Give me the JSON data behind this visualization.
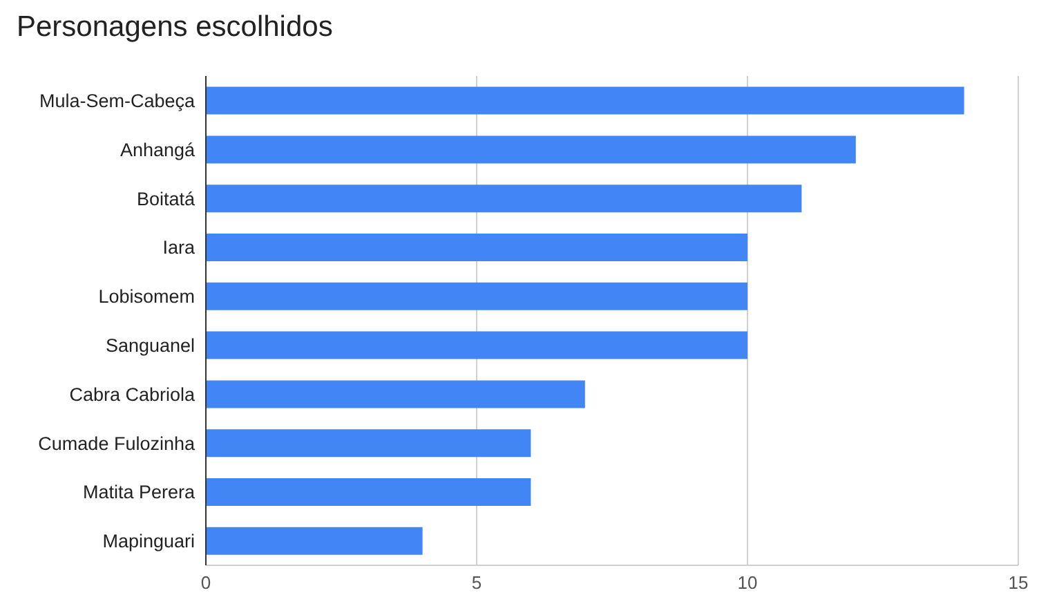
{
  "chart_data": {
    "type": "bar",
    "orientation": "horizontal",
    "title": "Personagens escolhidos",
    "categories": [
      "Mula-Sem-Cabeça",
      "Anhangá",
      "Boitatá",
      "Iara",
      "Lobisomem",
      "Sanguanel",
      "Cabra Cabriola",
      "Cumade Fulozinha",
      "Matita Perera",
      "Mapinguari"
    ],
    "values": [
      14,
      12,
      11,
      10,
      10,
      10,
      7,
      6,
      6,
      4
    ],
    "color": "#4285f4",
    "xlim": [
      0,
      15
    ],
    "xticks": [
      0,
      5,
      10,
      15
    ],
    "grid": "x",
    "legend": false
  }
}
